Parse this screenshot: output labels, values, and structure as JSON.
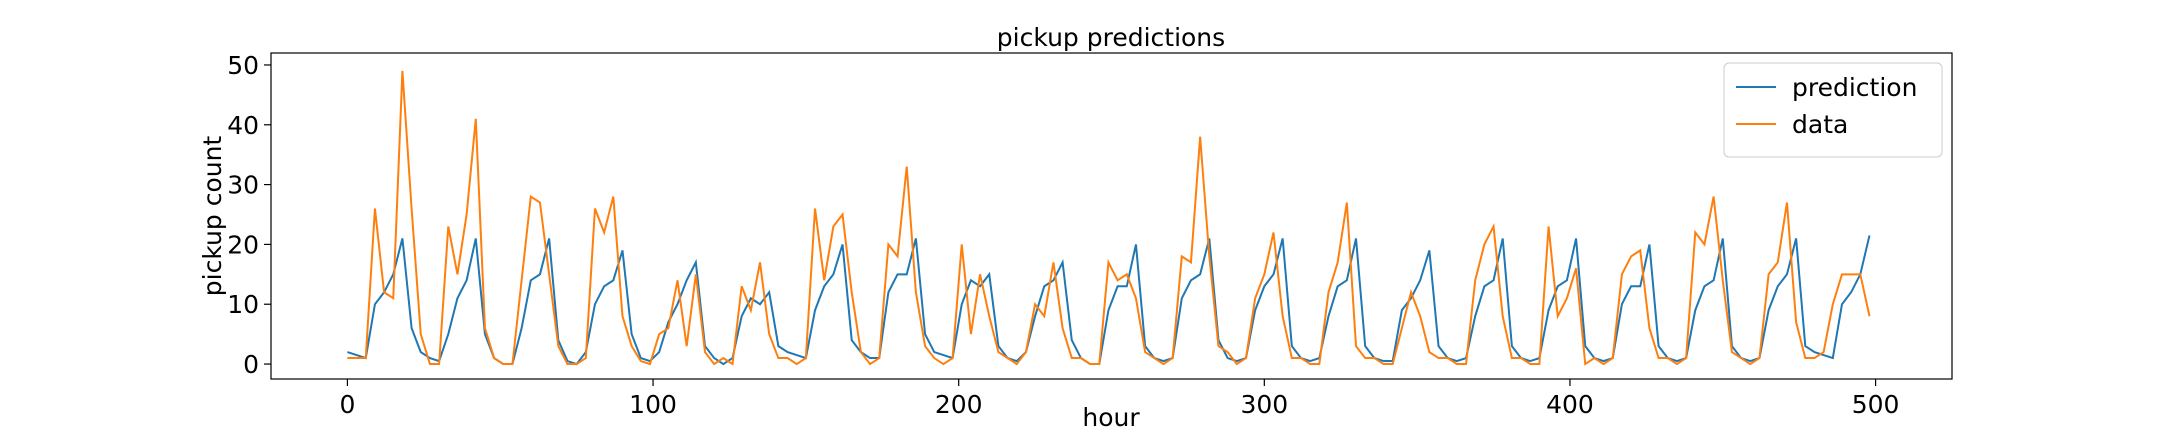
{
  "chart_data": {
    "type": "line",
    "title": "pickup predictions",
    "x_label": "hour",
    "y_label": "pickup count",
    "x": [
      0,
      3,
      6,
      9,
      12,
      15,
      18,
      21,
      24,
      27,
      30,
      33,
      36,
      39,
      42,
      45,
      48,
      51,
      54,
      57,
      60,
      63,
      66,
      69,
      72,
      75,
      78,
      81,
      84,
      87,
      90,
      93,
      96,
      99,
      102,
      105,
      108,
      111,
      114,
      117,
      120,
      123,
      126,
      129,
      132,
      135,
      138,
      141,
      144,
      147,
      150,
      153,
      156,
      159,
      162,
      165,
      168,
      171,
      174,
      177,
      180,
      183,
      186,
      189,
      192,
      195,
      198,
      201,
      204,
      207,
      210,
      213,
      216,
      219,
      222,
      225,
      228,
      231,
      234,
      237,
      240,
      243,
      246,
      249,
      252,
      255,
      258,
      261,
      264,
      267,
      270,
      273,
      276,
      279,
      282,
      285,
      288,
      291,
      294,
      297,
      300,
      303,
      306,
      309,
      312,
      315,
      318,
      321,
      324,
      327,
      330,
      333,
      336,
      339,
      342,
      345,
      348,
      351,
      354,
      357,
      360,
      363,
      366,
      369,
      372,
      375,
      378,
      381,
      384,
      387,
      390,
      393,
      396,
      399,
      402,
      405,
      408,
      411,
      414,
      417,
      420,
      423,
      426,
      429,
      432,
      435,
      438,
      441,
      444,
      447,
      450,
      453,
      456,
      459,
      462,
      465,
      468,
      471,
      474,
      477,
      480,
      483,
      486,
      489,
      492,
      495,
      498
    ],
    "series": [
      {
        "name": "prediction",
        "color": "#1f77b4",
        "values": [
          2,
          1.5,
          1,
          10,
          12,
          15,
          21,
          6,
          2,
          1,
          0.5,
          5,
          11,
          14,
          21,
          5,
          1,
          0,
          0,
          6,
          14,
          15,
          21,
          4,
          0.5,
          0,
          2,
          10,
          13,
          14,
          19,
          5,
          1,
          0.5,
          2,
          7,
          10,
          14,
          17,
          3,
          1,
          0,
          1,
          8,
          11,
          10,
          12,
          3,
          2,
          1.5,
          1,
          9,
          13,
          15,
          20,
          4,
          2,
          1,
          1,
          12,
          15,
          15,
          21,
          5,
          2,
          1.5,
          1,
          10,
          14,
          13,
          15,
          3,
          1,
          0.5,
          2,
          8,
          13,
          14,
          17,
          4,
          1,
          0,
          0,
          9,
          13,
          13,
          20,
          3,
          1,
          0.5,
          1,
          11,
          14,
          15,
          21,
          4,
          1,
          0.5,
          1,
          9,
          13,
          15,
          21,
          3,
          1,
          0.5,
          1,
          8,
          13,
          14,
          21,
          3,
          1,
          0.5,
          0.5,
          9,
          11,
          14,
          19,
          3,
          1,
          0.5,
          1,
          8,
          13,
          14,
          21,
          3,
          1,
          0.5,
          1,
          9,
          13,
          14,
          21,
          3,
          1,
          0.5,
          1,
          10,
          13,
          13,
          20,
          3,
          1,
          0.5,
          1,
          9,
          13,
          14,
          21,
          3,
          1,
          0.5,
          1,
          9,
          13,
          15,
          21,
          3,
          2,
          1.5,
          1,
          10,
          12,
          15,
          21.5
        ]
      },
      {
        "name": "data",
        "color": "#ff7f0e",
        "values": [
          1,
          1,
          1,
          26,
          12,
          11,
          49,
          26,
          5,
          0,
          0,
          23,
          15,
          25,
          41,
          6,
          1,
          0,
          0,
          14,
          28,
          27,
          15,
          3,
          0,
          0,
          1,
          26,
          22,
          28,
          8,
          3,
          0.5,
          0,
          5,
          6,
          14,
          3,
          15,
          2,
          0,
          1,
          0,
          13,
          9,
          17,
          5,
          1,
          1,
          0,
          1,
          26,
          14,
          23,
          25,
          12,
          2,
          0,
          1,
          20,
          18,
          33,
          12,
          3,
          1,
          0,
          1,
          20,
          5,
          15,
          8,
          2,
          1,
          0,
          2,
          10,
          8,
          17,
          6,
          1,
          1,
          0,
          0,
          17,
          14,
          15,
          11,
          2,
          1,
          0,
          1,
          18,
          17,
          38,
          18,
          3,
          2,
          0,
          1,
          11,
          15,
          22,
          8,
          1,
          1,
          0,
          0,
          12,
          17,
          27,
          3,
          1,
          1,
          0,
          0,
          6,
          12,
          8,
          2,
          1,
          1,
          0,
          0,
          14,
          20,
          23,
          8,
          1,
          1,
          0,
          0,
          23,
          8,
          11,
          16,
          0,
          1,
          0,
          1,
          15,
          18,
          19,
          6,
          1,
          1,
          0,
          1,
          22,
          20,
          28,
          14,
          2,
          1,
          0,
          1,
          15,
          17,
          27,
          7,
          1,
          1,
          2,
          10,
          15,
          15,
          15,
          8
        ]
      }
    ],
    "xlim": [
      -25,
      525
    ],
    "ylim": [
      -2.5,
      52
    ],
    "xticks": [
      0,
      100,
      200,
      300,
      400,
      500
    ],
    "yticks": [
      0,
      10,
      20,
      30,
      40,
      50
    ],
    "grid": false,
    "legend": "upper right"
  }
}
